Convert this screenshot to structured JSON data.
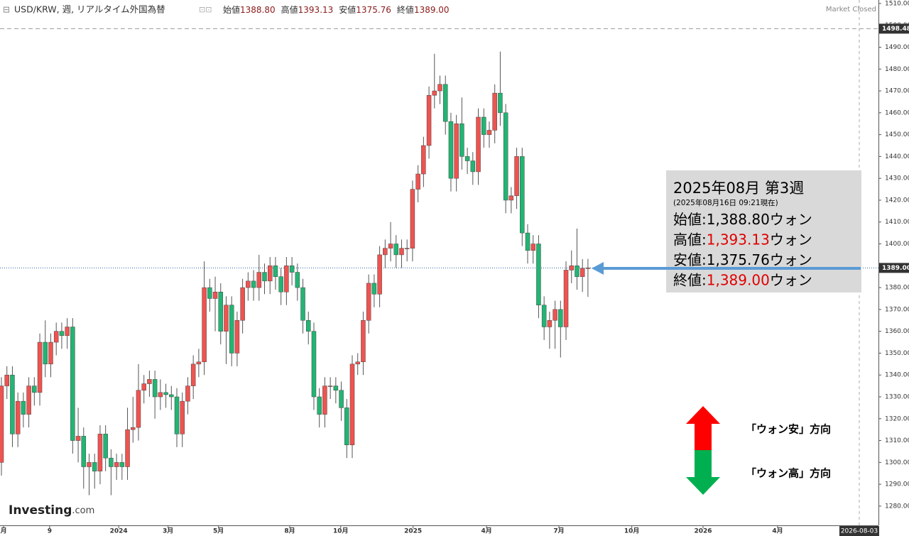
{
  "header": {
    "symbol": "USD/KRW, 週, リアルタイム外国為替",
    "ohlc": [
      {
        "label": "始値",
        "value": "1388.80"
      },
      {
        "label": "高値",
        "value": "1393.13"
      },
      {
        "label": "安値",
        "value": "1375.76"
      },
      {
        "label": "終値",
        "value": "1389.00"
      }
    ],
    "status": "Market Closed"
  },
  "chart_data": {
    "type": "candlestick",
    "up_color": "#ef5350",
    "down_color": "#22b573",
    "open": [
      1300,
      1335,
      1340,
      1313,
      1328,
      1322,
      1335,
      1332,
      1355,
      1345,
      1355,
      1360,
      1358,
      1362,
      1310,
      1312,
      1298,
      1300,
      1296,
      1313,
      1302,
      1298,
      1300,
      1298,
      1315,
      1316,
      1333,
      1336,
      1338,
      1330,
      1332,
      1331,
      1330,
      1313,
      1328,
      1335,
      1345,
      1346,
      1380,
      1375,
      1378,
      1360,
      1372,
      1350,
      1365,
      1380,
      1383,
      1380,
      1387,
      1383,
      1390,
      1385,
      1378,
      1390,
      1387,
      1380,
      1365,
      1360,
      1330,
      1322,
      1335,
      1335,
      1333,
      1325,
      1308,
      1345,
      1346,
      1365,
      1382,
      1377,
      1395,
      1398,
      1400,
      1395,
      1398,
      1398,
      1425,
      1432,
      1445,
      1468,
      1470,
      1473,
      1456,
      1430,
      1455,
      1440,
      1438,
      1433,
      1458,
      1450,
      1452,
      1469,
      1460,
      1420,
      1422,
      1440,
      1405,
      1397,
      1400,
      1372,
      1362,
      1365,
      1370,
      1362,
      1388,
      1390,
      1385,
      1388.8
    ],
    "high": [
      1339,
      1344,
      1344,
      1332,
      1332,
      1339,
      1339,
      1359,
      1365,
      1359,
      1364,
      1364,
      1366,
      1366,
      1325,
      1316,
      1304,
      1304,
      1317,
      1317,
      1306,
      1304,
      1304,
      1325,
      1330,
      1345,
      1340,
      1342,
      1342,
      1338,
      1336,
      1335,
      1334,
      1332,
      1339,
      1349,
      1352,
      1392,
      1384,
      1385,
      1382,
      1376,
      1376,
      1369,
      1384,
      1387,
      1388,
      1395,
      1391,
      1394,
      1394,
      1389,
      1394,
      1394,
      1391,
      1384,
      1369,
      1364,
      1334,
      1339,
      1339,
      1339,
      1337,
      1329,
      1349,
      1350,
      1369,
      1386,
      1386,
      1399,
      1402,
      1410,
      1404,
      1402,
      1402,
      1429,
      1436,
      1449,
      1472,
      1487,
      1477,
      1477,
      1460,
      1459,
      1467,
      1444,
      1442,
      1462,
      1462,
      1456,
      1473,
      1488,
      1464,
      1426,
      1444,
      1444,
      1409,
      1404,
      1404,
      1376,
      1369,
      1374,
      1374,
      1392,
      1397,
      1407,
      1393,
      1393.13
    ],
    "low": [
      1294,
      1329,
      1307,
      1307,
      1316,
      1316,
      1326,
      1326,
      1339,
      1339,
      1349,
      1352,
      1352,
      1304,
      1300,
      1288,
      1285,
      1288,
      1290,
      1296,
      1285,
      1292,
      1292,
      1292,
      1309,
      1310,
      1327,
      1330,
      1320,
      1324,
      1325,
      1324,
      1307,
      1307,
      1322,
      1329,
      1339,
      1340,
      1369,
      1360,
      1354,
      1345,
      1344,
      1344,
      1359,
      1374,
      1374,
      1374,
      1377,
      1377,
      1379,
      1372,
      1372,
      1381,
      1374,
      1359,
      1354,
      1324,
      1316,
      1316,
      1329,
      1327,
      1319,
      1302,
      1302,
      1340,
      1340,
      1359,
      1371,
      1371,
      1389,
      1392,
      1389,
      1389,
      1392,
      1392,
      1419,
      1426,
      1439,
      1462,
      1464,
      1450,
      1424,
      1424,
      1434,
      1432,
      1427,
      1427,
      1444,
      1444,
      1446,
      1454,
      1414,
      1414,
      1416,
      1399,
      1391,
      1391,
      1366,
      1356,
      1352,
      1352,
      1348,
      1356,
      1382,
      1379,
      1378,
      1375.76
    ],
    "close": [
      1335,
      1340,
      1313,
      1328,
      1322,
      1335,
      1332,
      1355,
      1345,
      1355,
      1360,
      1358,
      1362,
      1310,
      1312,
      1298,
      1300,
      1296,
      1313,
      1302,
      1298,
      1300,
      1298,
      1315,
      1316,
      1333,
      1336,
      1338,
      1330,
      1332,
      1331,
      1330,
      1313,
      1328,
      1335,
      1345,
      1346,
      1380,
      1375,
      1378,
      1360,
      1372,
      1350,
      1365,
      1380,
      1383,
      1380,
      1387,
      1383,
      1390,
      1385,
      1378,
      1390,
      1387,
      1380,
      1365,
      1360,
      1330,
      1322,
      1335,
      1335,
      1333,
      1325,
      1308,
      1345,
      1346,
      1365,
      1382,
      1377,
      1395,
      1398,
      1400,
      1395,
      1398,
      1398,
      1425,
      1432,
      1445,
      1468,
      1470,
      1473,
      1456,
      1430,
      1455,
      1440,
      1438,
      1433,
      1458,
      1450,
      1452,
      1469,
      1460,
      1420,
      1422,
      1440,
      1405,
      1397,
      1400,
      1372,
      1362,
      1365,
      1370,
      1362,
      1388,
      1390,
      1385,
      1388.8,
      1389
    ],
    "xlim": [
      -0.26,
      160
    ],
    "xticks": [
      {
        "value": 0.4,
        "label": "月"
      },
      {
        "value": 8.8,
        "label": "9"
      },
      {
        "value": 21.4,
        "label": "2024"
      },
      {
        "value": 30.4,
        "label": "3月"
      },
      {
        "value": 39.6,
        "label": "5月"
      },
      {
        "value": 52.6,
        "label": "8月"
      },
      {
        "value": 61.9,
        "label": "10月"
      },
      {
        "value": 75.1,
        "label": "2025"
      },
      {
        "value": 88.5,
        "label": "4月"
      },
      {
        "value": 101.7,
        "label": "7月"
      },
      {
        "value": 115,
        "label": "10月"
      },
      {
        "value": 128,
        "label": "2026"
      },
      {
        "value": 141.6,
        "label": "4月"
      }
    ],
    "x_cursor": {
      "value": 156.5,
      "label": "2026-08-03"
    },
    "ylim": [
      1271.2,
      1511.6
    ],
    "yticks": [
      {
        "value": 1280,
        "label": "1280.00"
      },
      {
        "value": 1290,
        "label": "1290.00"
      },
      {
        "value": 1300,
        "label": "1300.00"
      },
      {
        "value": 1310,
        "label": "1310.00"
      },
      {
        "value": 1320,
        "label": "1320.00"
      },
      {
        "value": 1330,
        "label": "1330.00"
      },
      {
        "value": 1340,
        "label": "1340.00"
      },
      {
        "value": 1350,
        "label": "1350.00"
      },
      {
        "value": 1360,
        "label": "1360.00"
      },
      {
        "value": 1370,
        "label": "1370.00"
      },
      {
        "value": 1380,
        "label": "1380.00"
      },
      {
        "value": 1390,
        "label": "1390.00"
      },
      {
        "value": 1400,
        "label": "1400.00"
      },
      {
        "value": 1410,
        "label": "1410.00"
      },
      {
        "value": 1420,
        "label": "1420.00"
      },
      {
        "value": 1430,
        "label": "1430.00"
      },
      {
        "value": 1440,
        "label": "1440.00"
      },
      {
        "value": 1450,
        "label": "1450.00"
      },
      {
        "value": 1460,
        "label": "1460.00"
      },
      {
        "value": 1470,
        "label": "1470.00"
      },
      {
        "value": 1480,
        "label": "1480.00"
      },
      {
        "value": 1490,
        "label": "1490.00"
      },
      {
        "value": 1500,
        "label": "1500.00"
      },
      {
        "value": 1510,
        "label": "1510.00"
      }
    ],
    "price_lines": [
      {
        "value": 1498.48,
        "label": "1498.48",
        "style": "dashed",
        "color": "#999999"
      },
      {
        "value": 1389,
        "label": "1389.00",
        "style": "dotted",
        "color": "#2f5fa8"
      }
    ],
    "annotation": {
      "title": "2025年08月 第3週",
      "subtitle": "(2025年08月16日 09:21現在)",
      "rows": [
        {
          "label": "始値:",
          "value": "1,388.80",
          "unit": "ウォン",
          "color": "#000000"
        },
        {
          "label": "高値:",
          "value": "1,393.13",
          "unit": "ウォン",
          "color": "#e00000"
        },
        {
          "label": "安値:",
          "value": "1,375.76",
          "unit": "ウォン",
          "color": "#000000"
        },
        {
          "label": "終値:",
          "value": "1,389.00",
          "unit": "ウォン",
          "color": "#e00000"
        }
      ]
    },
    "legend": {
      "up": "「ウォン安」方向",
      "down": "「ウォン高」方向"
    },
    "logo": {
      "main": "Investing",
      "suffix": ".com"
    }
  }
}
